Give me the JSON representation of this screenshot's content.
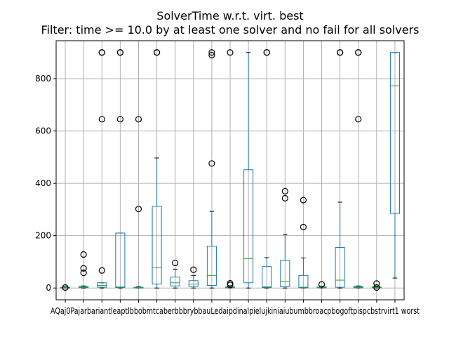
{
  "chart_data": {
    "type": "boxplot",
    "title": "SolverTime w.r.t. virt. best",
    "subtitle": "Filter: time >= 10.0 by at least one solver and no fail for all solvers",
    "xlabel": "",
    "ylabel": "",
    "ylim": [
      -45,
      945
    ],
    "yticks": [
      0,
      200,
      400,
      600,
      800
    ],
    "grid": true,
    "colors": {
      "box": "#1f77b4",
      "median": "#2ca02c",
      "flier": "#000000",
      "grid": "#b0b0b0"
    },
    "categories": [
      "AQaj0",
      "Pajar",
      "bariant",
      "leapt1",
      "bbobmt",
      "caberb",
      "bbbry",
      "bbau",
      "Ledaip",
      "dinal",
      "pieluj",
      "kiniai",
      "ubumb",
      "broacp",
      "bogoft",
      "pisp",
      "cbstr",
      "virt1",
      "worst"
    ],
    "category_label_text": "AQaj0PajarbariantleaptlbbobmtcaberbbbrybbauLedaipdinalpielujkiniaiubumbbroacpbogoftpispcbstrvirt1 worst",
    "boxes": [
      {
        "q1": 0,
        "median": 1,
        "q3": 3,
        "whisker_low": 0,
        "whisker_high": 5,
        "fliers": [
          2
        ]
      },
      {
        "q1": 2,
        "median": 3,
        "q3": 6,
        "whisker_low": 0,
        "whisker_high": 8,
        "fliers": [
          58,
          75,
          128
        ]
      },
      {
        "q1": 3,
        "median": 10,
        "q3": 20,
        "whisker_low": 0,
        "whisker_high": 20,
        "fliers": [
          67,
          645,
          900,
          900
        ]
      },
      {
        "q1": 2,
        "median": 4,
        "q3": 210,
        "whisker_low": 0,
        "whisker_high": 210,
        "fliers": [
          645,
          900,
          900
        ]
      },
      {
        "q1": 0,
        "median": 1,
        "q3": 3,
        "whisker_low": 0,
        "whisker_high": 5,
        "fliers": [
          302,
          645
        ]
      },
      {
        "q1": 15,
        "median": 78,
        "q3": 312,
        "whisker_low": 0,
        "whisker_high": 497,
        "fliers": [
          900,
          900
        ]
      },
      {
        "q1": 8,
        "median": 20,
        "q3": 42,
        "whisker_low": 0,
        "whisker_high": 72,
        "fliers": [
          96
        ]
      },
      {
        "q1": 6,
        "median": 15,
        "q3": 28,
        "whisker_low": 0,
        "whisker_high": 48,
        "fliers": [
          70
        ]
      },
      {
        "q1": 10,
        "median": 48,
        "q3": 160,
        "whisker_low": 0,
        "whisker_high": 293,
        "fliers": [
          476,
          890,
          900
        ]
      },
      {
        "q1": 1,
        "median": 2,
        "q3": 4,
        "whisker_low": 0,
        "whisker_high": 8,
        "fliers": [
          12,
          18,
          900
        ]
      },
      {
        "q1": 20,
        "median": 112,
        "q3": 452,
        "whisker_low": 0,
        "whisker_high": 900,
        "fliers": []
      },
      {
        "q1": 2,
        "median": 5,
        "q3": 82,
        "whisker_low": 0,
        "whisker_high": 116,
        "fliers": [
          900,
          900
        ]
      },
      {
        "q1": 5,
        "median": 25,
        "q3": 106,
        "whisker_low": 0,
        "whisker_high": 205,
        "fliers": [
          343,
          370
        ]
      },
      {
        "q1": 1,
        "median": 3,
        "q3": 48,
        "whisker_low": 0,
        "whisker_high": 115,
        "fliers": [
          233,
          336
        ]
      },
      {
        "q1": 1,
        "median": 2,
        "q3": 4,
        "whisker_low": 0,
        "whisker_high": 6,
        "fliers": [
          14
        ]
      },
      {
        "q1": 3,
        "median": 30,
        "q3": 155,
        "whisker_low": 0,
        "whisker_high": 328,
        "fliers": [
          900,
          900
        ]
      },
      {
        "q1": 1,
        "median": 3,
        "q3": 6,
        "whisker_low": 0,
        "whisker_high": 8,
        "fliers": [
          645,
          900,
          900
        ]
      },
      {
        "q1": 1,
        "median": 2,
        "q3": 4,
        "whisker_low": 0,
        "whisker_high": 6,
        "fliers": [
          2,
          17
        ]
      },
      {
        "q1": 285,
        "median": 773,
        "q3": 900,
        "whisker_low": 38,
        "whisker_high": 900,
        "fliers": []
      }
    ]
  }
}
